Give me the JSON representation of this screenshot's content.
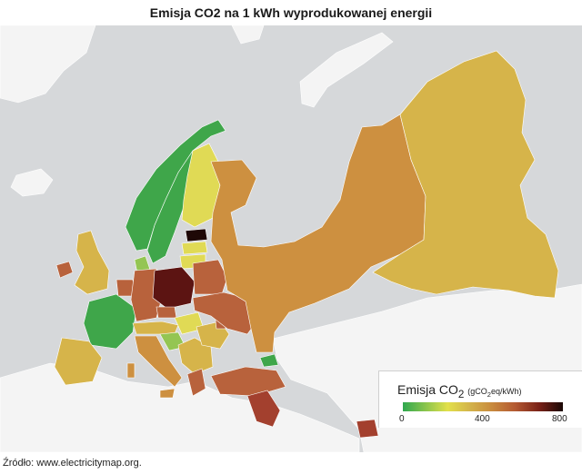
{
  "title": "Emisja CO2 na 1 kWh wyprodukowanej energii",
  "legend": {
    "title_main": "Emisja CO",
    "title_sub": "2",
    "unit_pre": "(gCO",
    "unit_sub": "2",
    "unit_post": "eq/kWh)",
    "ticks": [
      "0",
      "400",
      "800"
    ],
    "scale_min": 0,
    "scale_max": 800
  },
  "colors": {
    "sea": "#d6d8da",
    "land_no_data": "#f4f4f4",
    "green": "#3fa64a",
    "light_green": "#94c553",
    "yellow": "#e0da55",
    "gold": "#d6b44a",
    "orange": "#cd9040",
    "brown": "#b8623c",
    "red_brown": "#a3402e",
    "dark_red": "#5c1412",
    "black": "#1e0806"
  },
  "source": "Źródło: www.electricitymap.org."
}
